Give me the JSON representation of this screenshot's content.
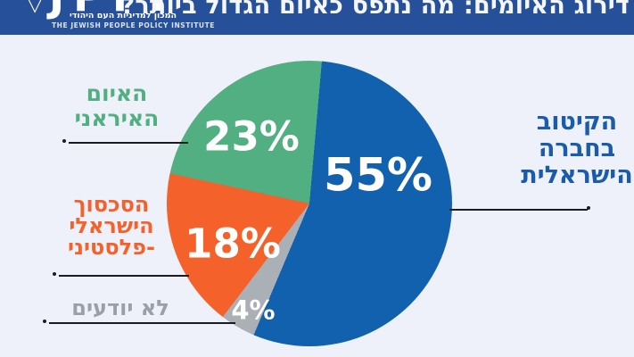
{
  "background_color": "#eef1f9",
  "header": {
    "bg_color": "#27509b",
    "title": "דירוג האיומים: מה נתפס כאיום הגדול ביותר?",
    "logo": {
      "mark": "▽",
      "acronym": "JPPI",
      "hebrew_line": "המכון למדיניות העם היהודי",
      "english_line": "THE JEWISH PEOPLE POLICY INSTITUTE"
    }
  },
  "chart_data": {
    "type": "pie",
    "title": "דירוג האיומים: מה נתפס כאיום הגדול ביותר?",
    "direction": "clockwise",
    "start_angle_deg": 5,
    "legend_position": "callouts-outside",
    "series": [
      {
        "label": "הקיטוב בחברה הישראלית",
        "value": 55,
        "pct_label": "55%",
        "color": "#1161ae"
      },
      {
        "label": "לא יודעים",
        "value": 4,
        "pct_label": "4%",
        "color": "#abafb6"
      },
      {
        "label": "הסכסוך הישראלי-פלסטיני",
        "value": 18,
        "pct_label": "18%",
        "color": "#f4612b"
      },
      {
        "label": "האיום האיראני",
        "value": 23,
        "pct_label": "23%",
        "color": "#52af81"
      }
    ]
  },
  "callouts": {
    "polarization": {
      "lines": [
        "הקיטוב",
        "בחברה",
        "הישראלית"
      ],
      "color": "#1a5caa"
    },
    "iran": {
      "lines": [
        "האיום",
        "האיראני"
      ],
      "color": "#52af81"
    },
    "conflict": {
      "lines": [
        "הסכסוך",
        "הישראלי",
        "-פלסטיני"
      ],
      "color": "#f4612b"
    },
    "dontknow": {
      "lines": [
        "לא יודעים"
      ],
      "color": "#9aa0a8"
    }
  },
  "connector": {
    "color": "#1c1c1c"
  }
}
